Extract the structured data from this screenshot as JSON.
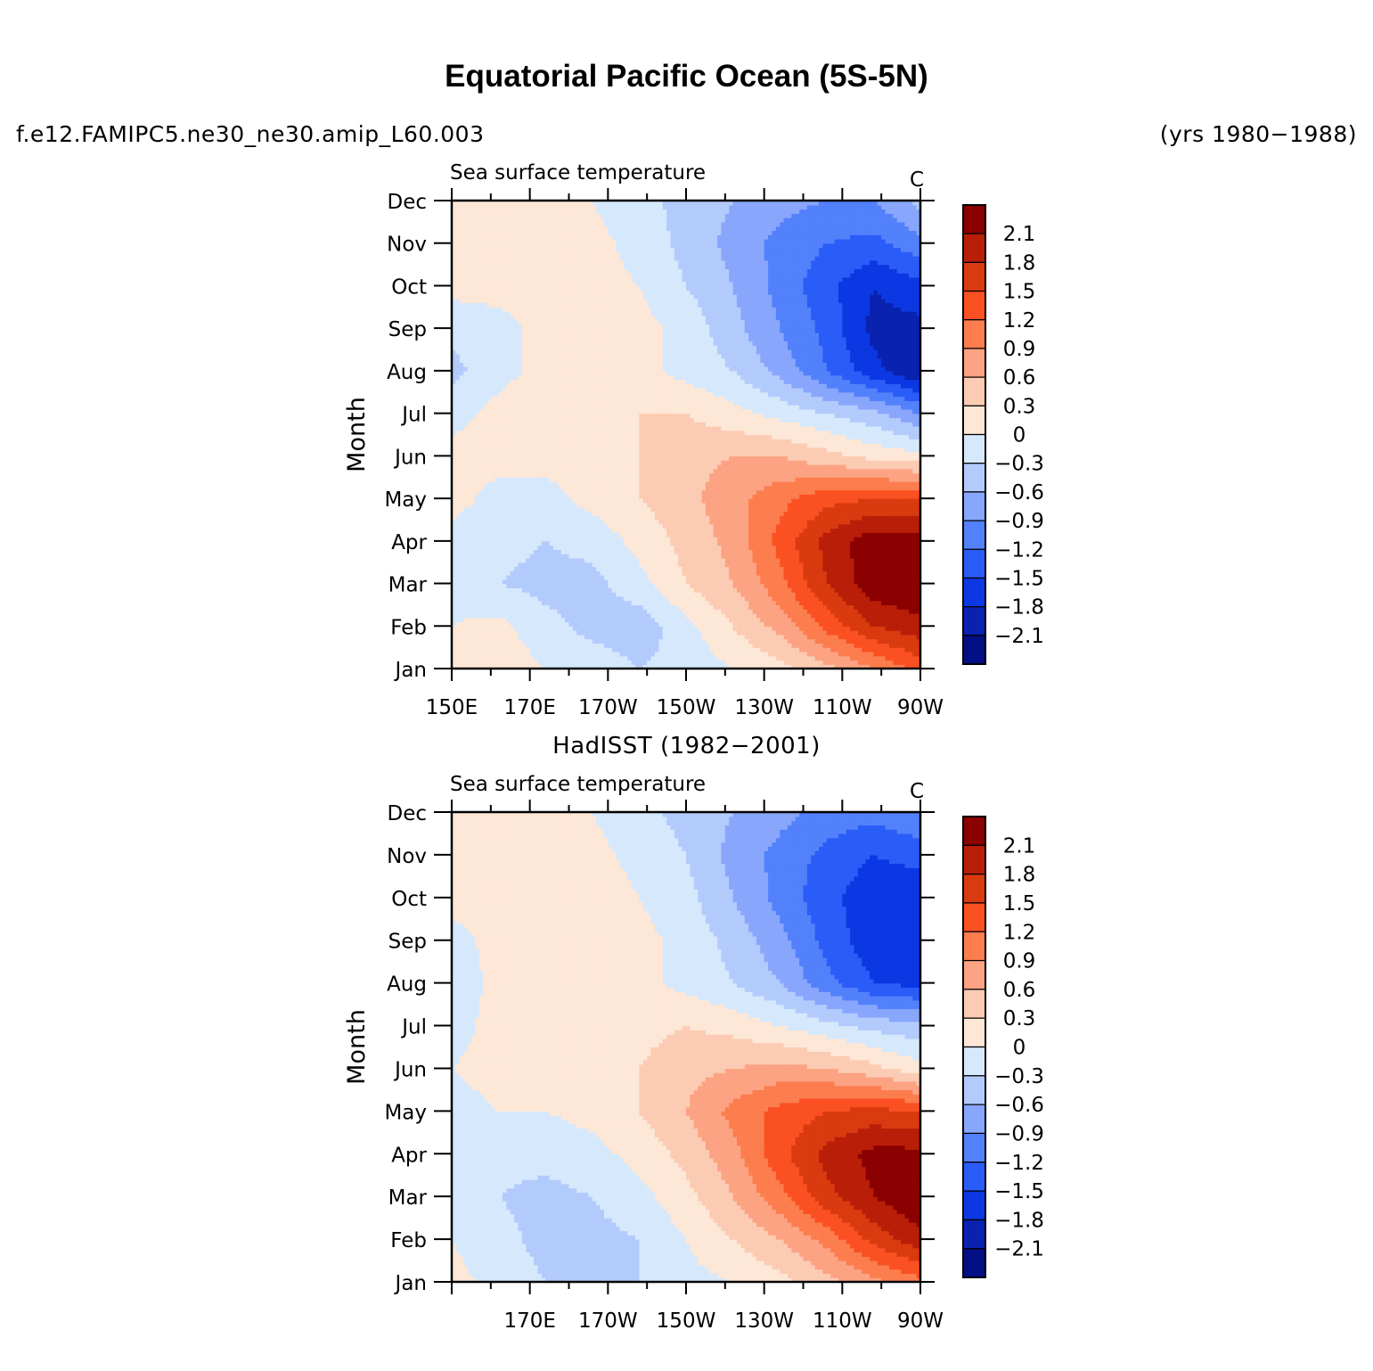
{
  "page": {
    "title": "Equatorial Pacific Ocean (5S-5N)",
    "case_name": "f.e12.FAMIPC5.ne30_ne30.amip_L60.003",
    "years": "(yrs 1980−1988)",
    "obs_title": "HadISST (1982−2001)"
  },
  "chart_data": [
    {
      "type": "heatmap",
      "panel": "model",
      "title_left": "Sea surface temperature",
      "title_right": "C",
      "ylabel": "Month",
      "xlabel": "",
      "x_tick_labels": [
        "150E",
        "170E",
        "170W",
        "150W",
        "130W",
        "110W",
        "90W"
      ],
      "y_tick_labels": [
        "Jan",
        "Feb",
        "Mar",
        "Apr",
        "May",
        "Jun",
        "Jul",
        "Aug",
        "Sep",
        "Oct",
        "Nov",
        "Dec"
      ],
      "xlim": [
        150,
        270
      ],
      "ylim": [
        1,
        12
      ],
      "x": [
        150,
        162,
        174,
        186,
        198,
        210,
        222,
        234,
        246,
        258,
        270
      ],
      "y": [
        "Jan",
        "Feb",
        "Mar",
        "Apr",
        "May",
        "Jun",
        "Jul",
        "Aug",
        "Sep",
        "Oct",
        "Nov",
        "Dec"
      ],
      "z": [
        [
          0.1,
          0.2,
          0.0,
          -0.1,
          -0.3,
          -0.2,
          0.0,
          0.2,
          0.5,
          0.9,
          1.3
        ],
        [
          0.0,
          0.1,
          -0.2,
          -0.4,
          -0.5,
          -0.1,
          0.3,
          0.7,
          1.3,
          1.8,
          2.0
        ],
        [
          -0.1,
          -0.3,
          -0.4,
          -0.4,
          -0.1,
          0.3,
          0.6,
          1.1,
          1.8,
          2.3,
          2.4
        ],
        [
          -0.1,
          -0.2,
          -0.3,
          -0.2,
          0.1,
          0.4,
          0.7,
          1.3,
          1.9,
          2.3,
          2.3
        ],
        [
          0.1,
          -0.1,
          -0.1,
          0.1,
          0.3,
          0.5,
          0.8,
          1.1,
          1.4,
          1.5,
          1.5
        ],
        [
          0.1,
          0.1,
          0.1,
          0.1,
          0.3,
          0.5,
          0.6,
          0.6,
          0.4,
          0.2,
          0.1
        ],
        [
          -0.1,
          0.1,
          0.2,
          0.1,
          0.3,
          0.3,
          0.1,
          -0.1,
          -0.3,
          -0.5,
          -0.9
        ],
        [
          -0.4,
          -0.1,
          0.1,
          0.2,
          0.1,
          -0.1,
          -0.3,
          -0.7,
          -1.2,
          -1.7,
          -2.1
        ],
        [
          -0.2,
          -0.1,
          0.1,
          0.3,
          0.1,
          -0.1,
          -0.5,
          -0.9,
          -1.3,
          -1.9,
          -1.9
        ],
        [
          0.1,
          0.1,
          0.1,
          0.1,
          0.0,
          -0.3,
          -0.6,
          -1.0,
          -1.4,
          -1.8,
          -1.6
        ],
        [
          0.1,
          0.1,
          0.1,
          0.1,
          -0.1,
          -0.4,
          -0.7,
          -1.0,
          -1.2,
          -1.3,
          -1.0
        ],
        [
          0.1,
          0.1,
          0.1,
          0.0,
          -0.2,
          -0.4,
          -0.6,
          -0.8,
          -0.9,
          -0.9,
          -0.5
        ]
      ],
      "colorbar": {
        "levels": [
          -2.1,
          -1.8,
          -1.5,
          -1.2,
          -0.9,
          -0.6,
          -0.3,
          0,
          0.3,
          0.6,
          0.9,
          1.2,
          1.5,
          1.8,
          2.1
        ],
        "labels": [
          "2.1",
          "1.8",
          "1.5",
          "1.2",
          "0.9",
          "0.6",
          "0.3",
          "0",
          "−0.3",
          "−0.6",
          "−0.9",
          "−1.2",
          "−1.5",
          "−1.8",
          "−2.1"
        ],
        "colors": [
          "#8b0000",
          "#b81e08",
          "#d93a0f",
          "#fa5022",
          "#fc7d4e",
          "#fca383",
          "#fccbb3",
          "#fde7d7",
          "#d6e8fc",
          "#b3cbfc",
          "#88a6fc",
          "#5381fb",
          "#2a5cf8",
          "#0c38e3",
          "#0a22b0",
          "#030f84"
        ]
      }
    },
    {
      "type": "heatmap",
      "panel": "observations",
      "title_left": "Sea surface temperature",
      "title_right": "C",
      "ylabel": "Month",
      "xlabel": "",
      "x_tick_labels": [
        "",
        "170E",
        "170W",
        "150W",
        "130W",
        "110W",
        "90W"
      ],
      "y_tick_labels": [
        "Jan",
        "Feb",
        "Mar",
        "Apr",
        "May",
        "Jun",
        "Jul",
        "Aug",
        "Sep",
        "Oct",
        "Nov",
        "Dec"
      ],
      "xlim": [
        150,
        270
      ],
      "ylim": [
        1,
        12
      ],
      "x": [
        150,
        162,
        174,
        186,
        198,
        210,
        222,
        234,
        246,
        258,
        270
      ],
      "y": [
        "Jan",
        "Feb",
        "Mar",
        "Apr",
        "May",
        "Jun",
        "Jul",
        "Aug",
        "Sep",
        "Oct",
        "Nov",
        "Dec"
      ],
      "z": [
        [
          0.1,
          -0.1,
          -0.3,
          -0.4,
          -0.3,
          -0.1,
          0.0,
          0.2,
          0.5,
          0.8,
          1.1
        ],
        [
          0.0,
          -0.2,
          -0.4,
          -0.4,
          -0.3,
          0.0,
          0.3,
          0.6,
          1.0,
          1.6,
          2.0
        ],
        [
          -0.1,
          -0.3,
          -0.4,
          -0.3,
          -0.1,
          0.2,
          0.6,
          1.1,
          1.7,
          2.1,
          2.4
        ],
        [
          -0.1,
          -0.2,
          -0.2,
          -0.1,
          0.1,
          0.4,
          0.8,
          1.4,
          1.9,
          2.2,
          2.2
        ],
        [
          -0.1,
          0.0,
          0.0,
          0.1,
          0.3,
          0.6,
          1.0,
          1.3,
          1.5,
          1.6,
          1.5
        ],
        [
          0.0,
          0.1,
          0.1,
          0.1,
          0.3,
          0.5,
          0.6,
          0.7,
          0.6,
          0.4,
          0.1
        ],
        [
          -0.1,
          0.1,
          0.1,
          0.1,
          0.2,
          0.3,
          0.2,
          0.0,
          -0.2,
          -0.4,
          -0.5
        ],
        [
          -0.2,
          0.1,
          0.1,
          0.2,
          0.1,
          -0.1,
          -0.3,
          -0.6,
          -1.1,
          -1.5,
          -1.6
        ],
        [
          -0.1,
          0.1,
          0.3,
          0.3,
          0.1,
          -0.1,
          -0.4,
          -0.8,
          -1.3,
          -1.7,
          -1.8
        ],
        [
          0.1,
          0.1,
          0.2,
          0.2,
          0.0,
          -0.2,
          -0.6,
          -1.0,
          -1.4,
          -1.7,
          -1.7
        ],
        [
          0.1,
          0.1,
          0.1,
          0.1,
          -0.1,
          -0.3,
          -0.7,
          -1.0,
          -1.3,
          -1.5,
          -1.4
        ],
        [
          0.1,
          0.1,
          0.1,
          0.0,
          -0.2,
          -0.4,
          -0.6,
          -0.8,
          -1.0,
          -1.1,
          -0.9
        ]
      ],
      "colorbar": {
        "levels": [
          -2.1,
          -1.8,
          -1.5,
          -1.2,
          -0.9,
          -0.6,
          -0.3,
          0,
          0.3,
          0.6,
          0.9,
          1.2,
          1.5,
          1.8,
          2.1
        ],
        "labels": [
          "2.1",
          "1.8",
          "1.5",
          "1.2",
          "0.9",
          "0.6",
          "0.3",
          "0",
          "−0.3",
          "−0.6",
          "−0.9",
          "−1.2",
          "−1.5",
          "−1.8",
          "−2.1"
        ],
        "colors": [
          "#8b0000",
          "#b81e08",
          "#d93a0f",
          "#fa5022",
          "#fc7d4e",
          "#fca383",
          "#fccbb3",
          "#fde7d7",
          "#d6e8fc",
          "#b3cbfc",
          "#88a6fc",
          "#5381fb",
          "#2a5cf8",
          "#0c38e3",
          "#0a22b0",
          "#030f84"
        ]
      }
    }
  ]
}
